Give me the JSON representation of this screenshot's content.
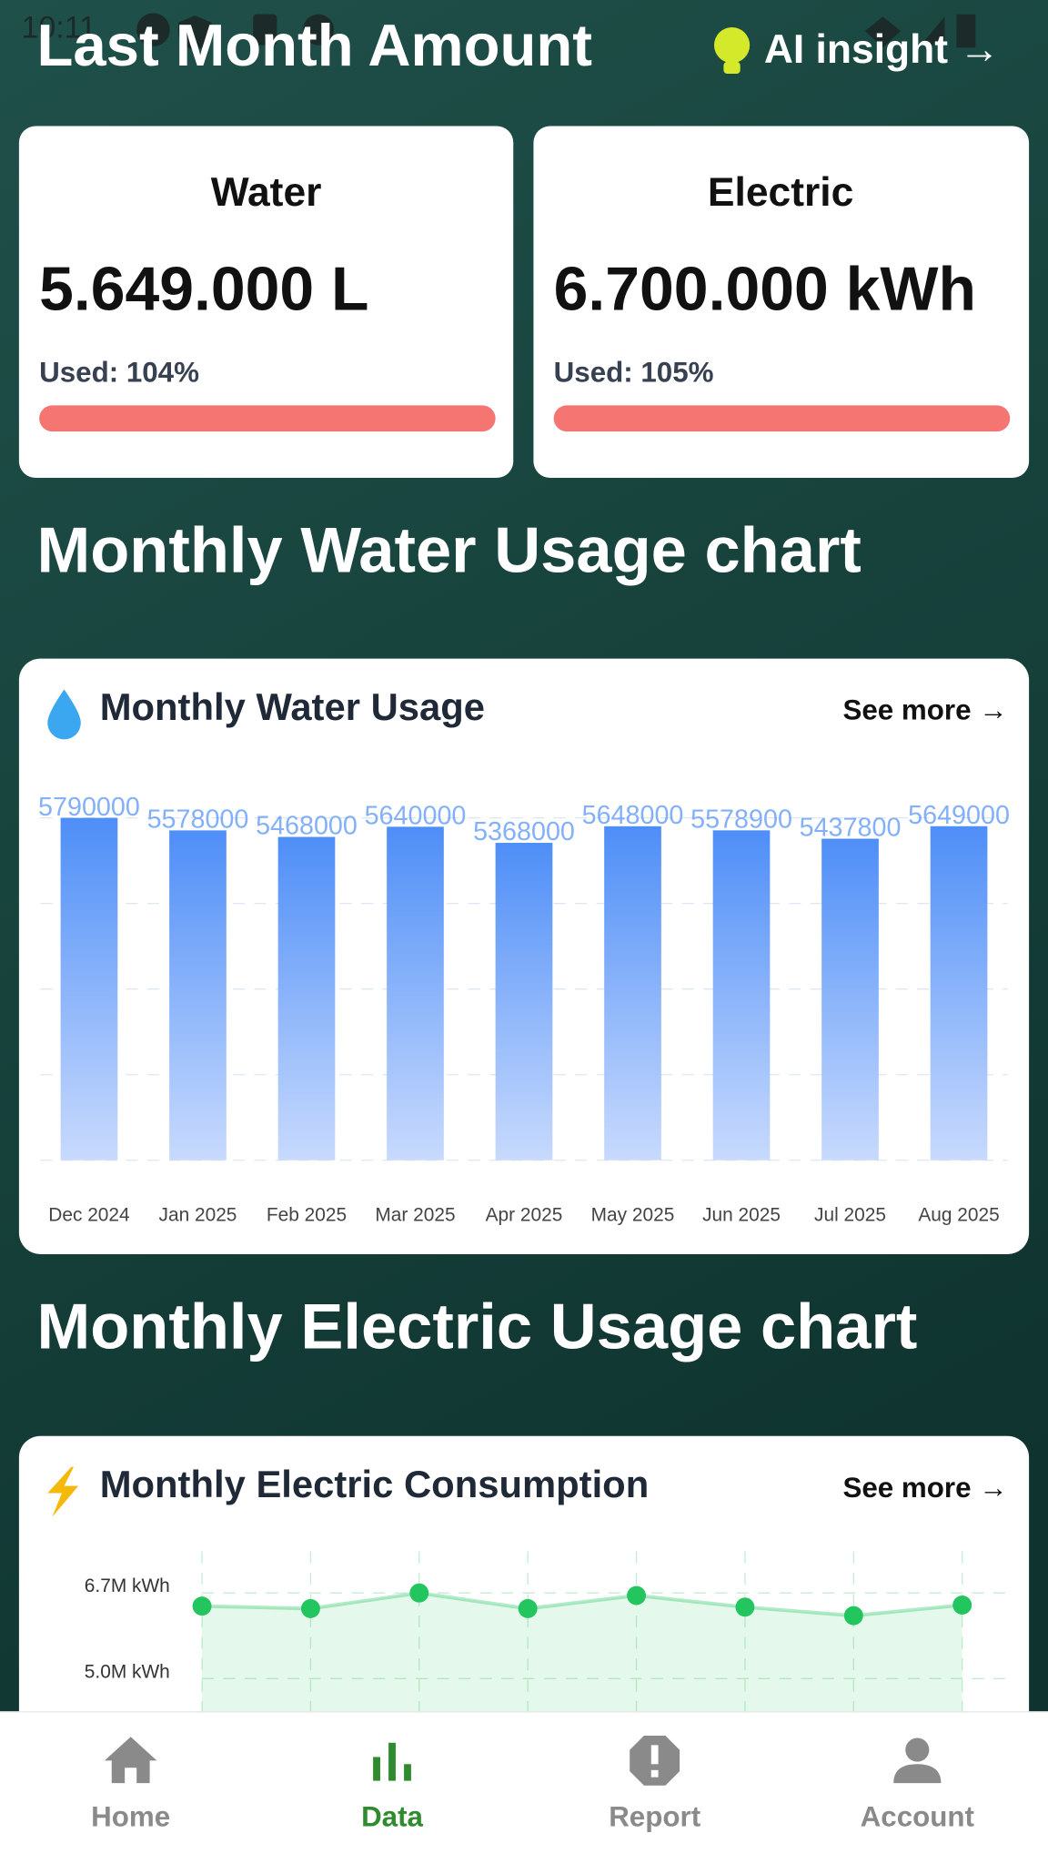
{
  "status_bar": {
    "time": "10:11"
  },
  "header": {
    "title": "Last Month Amount",
    "ai_insight": "AI insight →"
  },
  "summary_cards": [
    {
      "title": "Water",
      "amount": "5.649.000 L",
      "used": "Used: 104%"
    },
    {
      "title": "Electric",
      "amount": "6.700.000 kWh",
      "used": "Used: 105%"
    }
  ],
  "sections": [
    "Monthly Water Usage chart",
    "Monthly Electric Usage chart"
  ],
  "chart_links": [
    "See more →",
    "See more →"
  ],
  "chart_data": [
    {
      "type": "bar",
      "title": "Monthly Water Usage",
      "categories": [
        "Dec 2024",
        "Jan 2025",
        "Feb 2025",
        "Mar 2025",
        "Apr 2025",
        "May 2025",
        "Jun 2025",
        "Jul 2025",
        "Aug 2025"
      ],
      "values": [
        5790000,
        5578000,
        5468000,
        5640000,
        5368000,
        5648000,
        5578900,
        5437800,
        5649000
      ],
      "color": "#4e8ef7",
      "ylim": [
        0,
        5790000
      ],
      "grid": true
    },
    {
      "type": "line",
      "title": "Monthly Electric Consumption",
      "values": [
        6440000,
        6390000,
        6700000,
        6390000,
        6650000,
        6420000,
        6250000,
        6460000
      ],
      "color": "#22c55e",
      "ylim": [
        0,
        6700000
      ],
      "yticks": [
        {
          "value": 6700000,
          "label": "6.7M kWh"
        },
        {
          "value": 5000000,
          "label": "5.0M kWh"
        }
      ],
      "grid": true
    }
  ],
  "nav": {
    "items": [
      "Home",
      "Data",
      "Report",
      "Account"
    ],
    "active": "Data"
  }
}
